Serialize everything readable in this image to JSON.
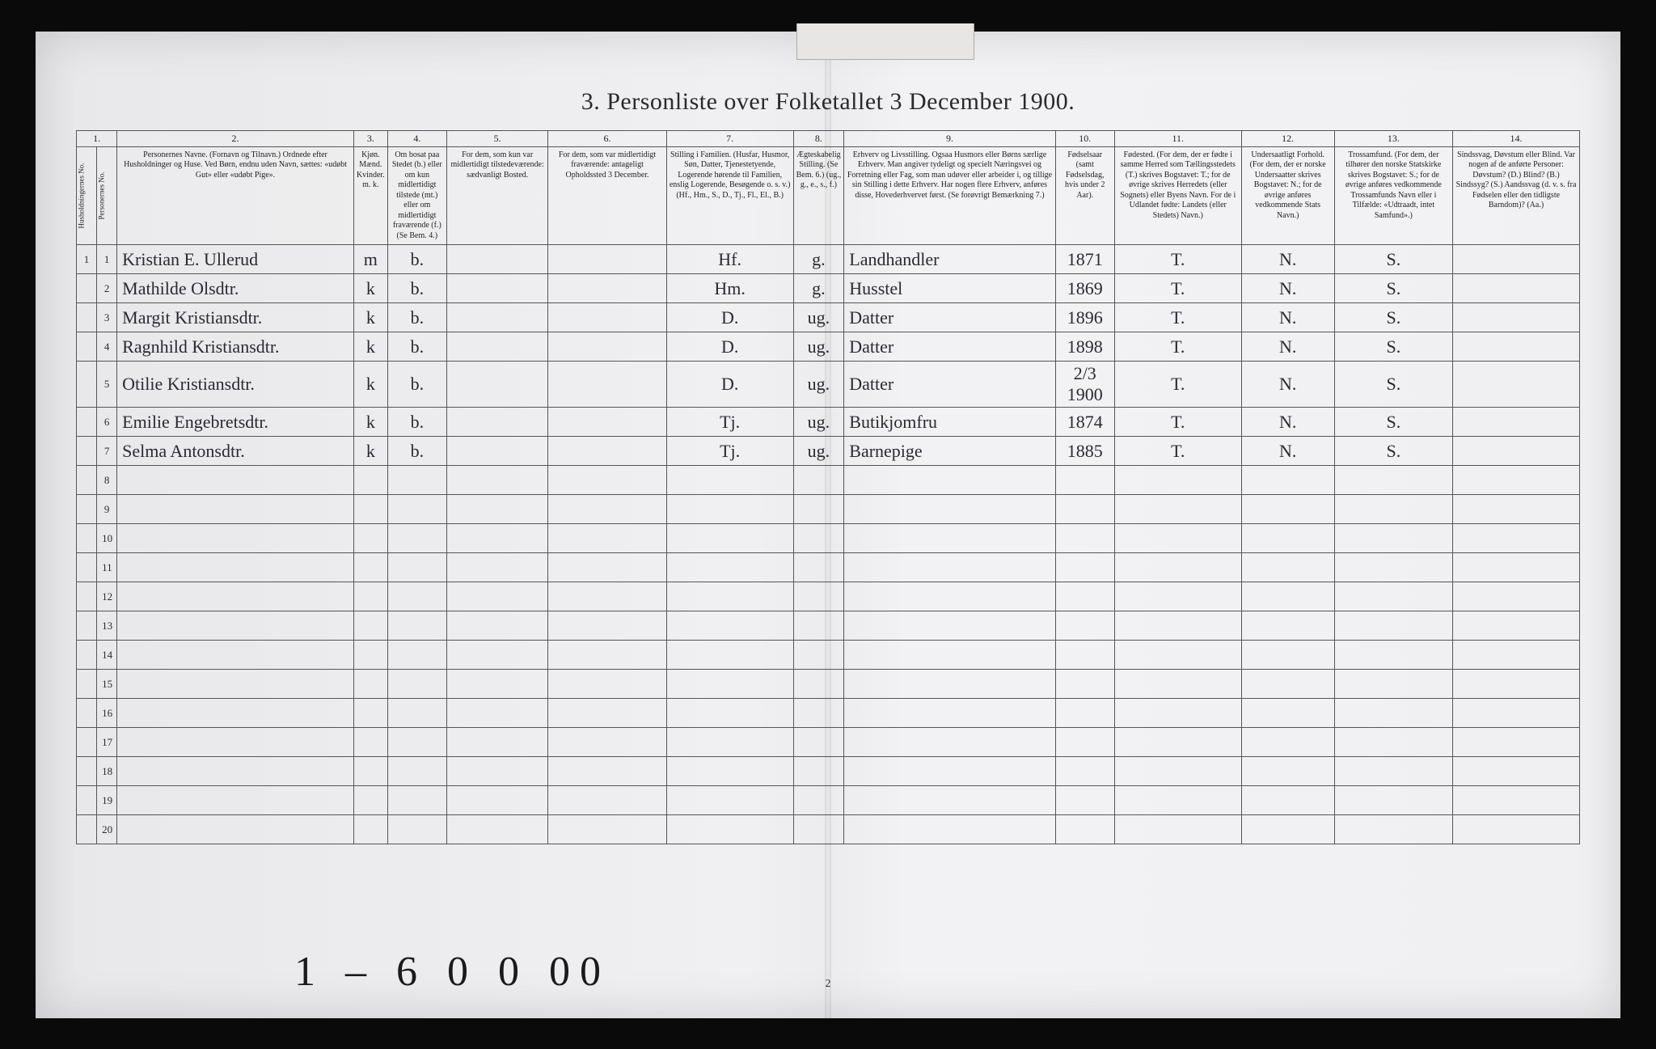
{
  "title": "3. Personliste over Folketallet 3 December 1900.",
  "colNumbers": [
    "1.",
    "2.",
    "3.",
    "4.",
    "5.",
    "6.",
    "7.",
    "8.",
    "9.",
    "10.",
    "11.",
    "12.",
    "13.",
    "14."
  ],
  "headers": {
    "c1a": "Husholdningernes No.",
    "c1b": "Personernes No.",
    "c2": "Personernes Navne.\n(Fornavn og Tilnavn.)\nOrdnede efter Husholdninger og Huse.\nVed Børn, endnu uden Navn, sættes: «udøbt Gut» eller «udøbt Pige».",
    "c3": "Kjøn.\nMænd. Kvinder.\nm.  k.",
    "c4": "Om bosat paa Stedet (b.) eller om kun midlertidigt tilstede (mt.) eller om midlertidigt fraværende (f.)\n(Se Bem. 4.)",
    "c5": "For dem, som kun var midlertidigt tilstedeværende:\nsædvanligt Bosted.",
    "c6": "For dem, som var midlertidigt fraværende:\nantageligt Opholdssted 3 December.",
    "c7": "Stilling i Familien.\n(Husfar, Husmor, Søn, Datter, Tjenestetyende, Logerende hørende til Familien, enslig Logerende, Besøgende o. s. v.)\n(Hf., Hm., S., D., Tj., Fl., El., B.)",
    "c8": "Ægteskabelig Stilling.\n(Se Bem. 6.)\n(ug., g., e., s., f.)",
    "c9": "Erhverv og Livsstilling.\nOgsaa Husmors eller Børns særlige Erhverv. Man angiver tydeligt og specielt Næringsvei og Forretning eller Fag, som man udøver eller arbeider i, og tillige sin Stilling i dette Erhverv. Har nogen flere Erhverv, anføres disse, Hovederhvervet først.\n(Se forøvrigt Bemærkning 7.)",
    "c10": "Fødselsaar\n(samt Fødselsdag, hvis under 2 Aar).",
    "c11": "Fødested.\n(For dem, der er fødte i samme Herred som Tællingsstedets (T.) skrives Bogstavet: T.; for de øvrige skrives Herredets (eller Sognets) eller Byens Navn. For de i Udlandet fødte: Landets (eller Stedets) Navn.)",
    "c12": "Undersaatligt Forhold.\n(For dem, der er norske Undersaatter skrives Bogstavet: N.; for de øvrige anføres vedkommende Stats Navn.)",
    "c13": "Trossamfund.\n(For dem, der tilhører den norske Statskirke skrives Bogstavet: S.; for de øvrige anføres vedkommende Trossamfunds Navn eller i Tilfælde: «Udtraadt, intet Samfund».)",
    "c14": "Sindssvag, Døvstum eller Blind.\nVar nogen af de anførte Personer:\nDøvstum? (D.)\nBlind? (B.)\nSindssyg? (S.)\nAandssvag (d. v. s. fra Fødselen eller den tidligste Barndom)? (Aa.)"
  },
  "rows": [
    {
      "n1": "1",
      "n2": "1",
      "name": "Kristian E. Ullerud",
      "sex": "m",
      "res": "b.",
      "c7": "Hf.",
      "c8": "g.",
      "c9": "Landhandler",
      "c10": "1871",
      "c11": "T.",
      "c12": "N.",
      "c13": "S."
    },
    {
      "n1": "",
      "n2": "2",
      "name": "Mathilde Olsdtr.",
      "sex": "k",
      "res": "b.",
      "c7": "Hm.",
      "c8": "g.",
      "c9": "Husstel",
      "c10": "1869",
      "c11": "T.",
      "c12": "N.",
      "c13": "S."
    },
    {
      "n1": "",
      "n2": "3",
      "name": "Margit Kristiansdtr.",
      "sex": "k",
      "res": "b.",
      "c7": "D.",
      "c8": "ug.",
      "c9": "Datter",
      "c10": "1896",
      "c11": "T.",
      "c12": "N.",
      "c13": "S."
    },
    {
      "n1": "",
      "n2": "4",
      "name": "Ragnhild Kristiansdtr.",
      "sex": "k",
      "res": "b.",
      "c7": "D.",
      "c8": "ug.",
      "c9": "Datter",
      "c10": "1898",
      "c11": "T.",
      "c12": "N.",
      "c13": "S."
    },
    {
      "n1": "",
      "n2": "5",
      "name": "Otilie Kristiansdtr.",
      "sex": "k",
      "res": "b.",
      "c7": "D.",
      "c8": "ug.",
      "c9": "Datter",
      "c10": "2/3 1900",
      "c11": "T.",
      "c12": "N.",
      "c13": "S."
    },
    {
      "n1": "",
      "n2": "6",
      "name": "Emilie Engebretsdtr.",
      "sex": "k",
      "res": "b.",
      "c7": "Tj.",
      "c8": "ug.",
      "c9": "Butikjomfru",
      "c10": "1874",
      "c11": "T.",
      "c12": "N.",
      "c13": "S."
    },
    {
      "n1": "",
      "n2": "7",
      "name": "Selma Antonsdtr.",
      "sex": "k",
      "res": "b.",
      "c7": "Tj.",
      "c8": "ug.",
      "c9": "Barnepige",
      "c10": "1885",
      "c11": "T.",
      "c12": "N.",
      "c13": "S."
    }
  ],
  "emptyRows": [
    "8",
    "9",
    "10",
    "11",
    "12",
    "13",
    "14",
    "15",
    "16",
    "17",
    "18",
    "19",
    "20"
  ],
  "footMark": "1 – 6 0 0 00",
  "pageNumber": "2",
  "widths": {
    "c1a": 24,
    "c1b": 24,
    "c2": 280,
    "c3": 40,
    "c4": 70,
    "c5": 120,
    "c6": 140,
    "c7": 150,
    "c8": 60,
    "c9": 250,
    "c10": 70,
    "c11": 150,
    "c12": 110,
    "c13": 140,
    "c14": 150
  }
}
